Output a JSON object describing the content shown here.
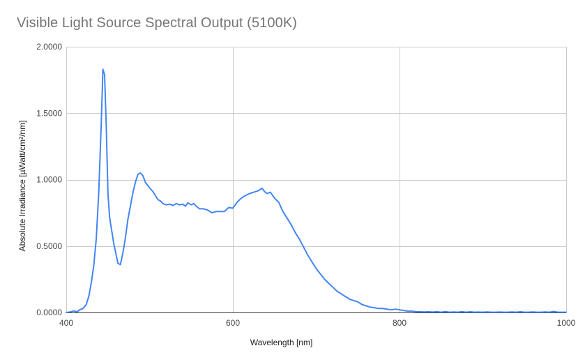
{
  "chart_data": {
    "type": "line",
    "title": "Visible Light Source Spectral Output (5100K)",
    "xlabel": "Wavelength [nm]",
    "ylabel": "Absolute Irradiance [µWatt/cm²/nm]",
    "xlim": [
      400,
      1000
    ],
    "ylim": [
      0,
      2
    ],
    "x_ticks": [
      400,
      600,
      800,
      1000
    ],
    "x_tick_labels": [
      "400",
      "600",
      "800",
      "1000"
    ],
    "y_ticks": [
      0,
      0.5,
      1,
      1.5,
      2
    ],
    "y_tick_labels": [
      "0.0000",
      "0.5000",
      "1.0000",
      "1.5000",
      "2.0000"
    ],
    "grid": true,
    "legend": "none",
    "colors": {
      "series": "#4285f4",
      "grid": "#cccccc",
      "axis": "#333333",
      "title": "#757575"
    },
    "series": [
      {
        "x": [
          400,
          405,
          409,
          413,
          416,
          420,
          424,
          427,
          430,
          433,
          436,
          439,
          442,
          444,
          446,
          448,
          450,
          452,
          454,
          457,
          460,
          462,
          465,
          468,
          471,
          474,
          477,
          480,
          483,
          486,
          489,
          492,
          495,
          498,
          501,
          504,
          507,
          510,
          513,
          516,
          520,
          524,
          528,
          532,
          536,
          540,
          543,
          546,
          550,
          553,
          556,
          560,
          565,
          570,
          575,
          580,
          585,
          590,
          595,
          600,
          605,
          610,
          615,
          620,
          625,
          630,
          635,
          638,
          641,
          645,
          650,
          655,
          660,
          665,
          670,
          675,
          680,
          685,
          690,
          695,
          700,
          705,
          710,
          715,
          720,
          725,
          730,
          735,
          740,
          745,
          750,
          755,
          760,
          765,
          770,
          775,
          780,
          785,
          790,
          795,
          800,
          805,
          810,
          815,
          820,
          825,
          830,
          835,
          840,
          845,
          850,
          855,
          860,
          865,
          870,
          875,
          880,
          885,
          890,
          895,
          900,
          905,
          910,
          915,
          920,
          925,
          930,
          935,
          940,
          945,
          950,
          955,
          960,
          965,
          970,
          975,
          980,
          985,
          990,
          995,
          1000
        ],
        "y": [
          0.0,
          0.004,
          0.012,
          0.004,
          0.02,
          0.03,
          0.06,
          0.12,
          0.22,
          0.35,
          0.55,
          0.9,
          1.42,
          1.83,
          1.79,
          1.4,
          0.9,
          0.72,
          0.64,
          0.52,
          0.43,
          0.37,
          0.36,
          0.45,
          0.56,
          0.7,
          0.8,
          0.9,
          0.98,
          1.04,
          1.05,
          1.03,
          0.98,
          0.955,
          0.93,
          0.91,
          0.88,
          0.85,
          0.84,
          0.82,
          0.81,
          0.815,
          0.805,
          0.82,
          0.81,
          0.815,
          0.8,
          0.825,
          0.81,
          0.82,
          0.8,
          0.78,
          0.78,
          0.77,
          0.75,
          0.76,
          0.76,
          0.76,
          0.79,
          0.785,
          0.83,
          0.86,
          0.88,
          0.895,
          0.905,
          0.915,
          0.935,
          0.91,
          0.895,
          0.905,
          0.86,
          0.83,
          0.76,
          0.71,
          0.66,
          0.6,
          0.55,
          0.49,
          0.43,
          0.38,
          0.33,
          0.29,
          0.25,
          0.22,
          0.19,
          0.16,
          0.14,
          0.12,
          0.1,
          0.09,
          0.08,
          0.06,
          0.05,
          0.04,
          0.035,
          0.03,
          0.03,
          0.025,
          0.02,
          0.025,
          0.02,
          0.015,
          0.01,
          0.01,
          0.006,
          0.005,
          0.004,
          0.005,
          0.003,
          0.006,
          0.002,
          0.007,
          0.002,
          0.004,
          0.002,
          0.006,
          0.002,
          0.005,
          0.002,
          0.003,
          0.002,
          0.004,
          0.002,
          0.002,
          0.003,
          0.002,
          0.002,
          0.004,
          0.002,
          0.005,
          0.002,
          0.002,
          0.004,
          0.002,
          0.002,
          0.004,
          0.002,
          0.008,
          0.002,
          0.002,
          0.002
        ]
      }
    ]
  }
}
